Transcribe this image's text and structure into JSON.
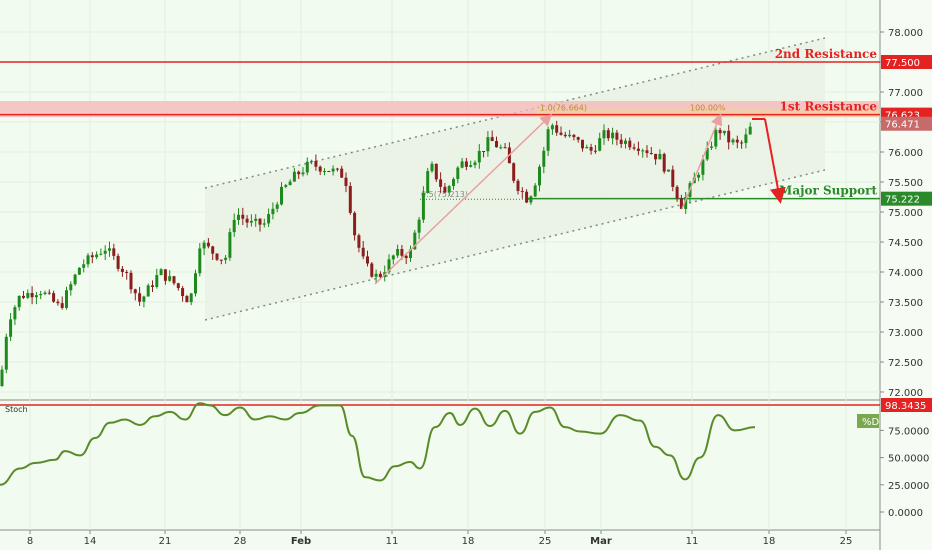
{
  "chart_data": [
    {
      "type": "candlestick",
      "title": "",
      "xlabel": "",
      "ylabel": "",
      "ylim": [
        71.8,
        78.5
      ],
      "x_ticks": [
        "8",
        "14",
        "21",
        "28",
        "Feb",
        "11",
        "18",
        "25",
        "Mar",
        "11",
        "18",
        "25"
      ],
      "y_ticks": [
        "72.000",
        "72.500",
        "73.000",
        "73.500",
        "74.000",
        "74.500",
        "75.000",
        "75.500",
        "76.000",
        "76.500",
        "77.000",
        "77.500",
        "78.000"
      ],
      "price_path": [
        [
          0,
          72.1
        ],
        [
          8,
          73.2
        ],
        [
          20,
          73.6
        ],
        [
          40,
          73.7
        ],
        [
          60,
          73.4
        ],
        [
          80,
          74.1
        ],
        [
          105,
          74.4
        ],
        [
          125,
          74.0
        ],
        [
          140,
          73.5
        ],
        [
          160,
          74.0
        ],
        [
          175,
          73.8
        ],
        [
          190,
          73.5
        ],
        [
          200,
          74.5
        ],
        [
          215,
          74.3
        ],
        [
          225,
          74.2
        ],
        [
          235,
          75.0
        ],
        [
          250,
          74.8
        ],
        [
          265,
          74.8
        ],
        [
          280,
          75.3
        ],
        [
          295,
          75.6
        ],
        [
          310,
          75.8
        ],
        [
          330,
          75.7
        ],
        [
          345,
          75.6
        ],
        [
          355,
          74.6
        ],
        [
          365,
          74.1
        ],
        [
          378,
          73.9
        ],
        [
          395,
          74.3
        ],
        [
          410,
          74.3
        ],
        [
          420,
          75.0
        ],
        [
          430,
          75.8
        ],
        [
          445,
          75.3
        ],
        [
          460,
          75.8
        ],
        [
          475,
          75.9
        ],
        [
          490,
          76.2
        ],
        [
          505,
          76.0
        ],
        [
          515,
          75.5
        ],
        [
          528,
          75.2
        ],
        [
          535,
          75.5
        ],
        [
          545,
          76.1
        ],
        [
          550,
          76.5
        ],
        [
          560,
          76.3
        ],
        [
          575,
          76.2
        ],
        [
          590,
          76.0
        ],
        [
          605,
          76.3
        ],
        [
          620,
          76.2
        ],
        [
          640,
          76.1
        ],
        [
          660,
          75.9
        ],
        [
          672,
          75.5
        ],
        [
          682,
          75.1
        ],
        [
          690,
          75.4
        ],
        [
          705,
          75.9
        ],
        [
          718,
          76.4
        ],
        [
          728,
          76.2
        ],
        [
          740,
          76.1
        ],
        [
          748,
          76.3
        ],
        [
          753,
          76.5
        ]
      ],
      "levels": [
        {
          "name": "2nd Resistance",
          "value": 77.5,
          "badge": "77.500",
          "color": "#e52222"
        },
        {
          "name": "1st Resistance",
          "value": 76.623,
          "badge": "76.623",
          "color": "#e52222"
        },
        {
          "name": "Major Support",
          "value": 75.222,
          "badge": "75.222",
          "color": "#2a8a2a"
        }
      ],
      "last_price": {
        "value": 76.471,
        "badge": "76.471"
      },
      "channel": {
        "upper": [
          [
            205,
            75.4
          ],
          [
            825,
            77.9
          ]
        ],
        "lower": [
          [
            205,
            73.2
          ],
          [
            825,
            75.7
          ]
        ]
      },
      "fib_labels": {
        "left": "0.5(75.213)",
        "top1": "1.0(76.664)",
        "top2": "100.00%"
      },
      "arrows": {
        "up": [
          [
            375,
            73.8
          ],
          [
            550,
            76.6
          ]
        ],
        "down": [
          [
            765,
            76.55
          ],
          [
            780,
            75.2
          ]
        ]
      }
    },
    {
      "type": "line",
      "title": "Stoch",
      "ylim": [
        -10,
        110
      ],
      "y_ticks": [
        "0.0000",
        "25.0000",
        "50.0000",
        "75.0000"
      ],
      "overbought": {
        "value": 98.3435,
        "badge": "98.3435"
      },
      "legend": "%D",
      "x": [
        0,
        20,
        35,
        55,
        65,
        80,
        95,
        110,
        125,
        140,
        155,
        170,
        185,
        200,
        210,
        225,
        240,
        255,
        270,
        285,
        300,
        320,
        340,
        352,
        365,
        380,
        395,
        410,
        420,
        435,
        450,
        460,
        475,
        490,
        505,
        520,
        535,
        550,
        565,
        580,
        600,
        620,
        640,
        655,
        670,
        685,
        700,
        718,
        735,
        755
      ],
      "values": [
        25,
        40,
        45,
        48,
        56,
        52,
        68,
        82,
        85,
        80,
        88,
        92,
        85,
        100,
        98,
        89,
        96,
        85,
        88,
        85,
        91,
        98,
        98,
        70,
        32,
        29,
        42,
        46,
        40,
        78,
        91,
        80,
        95,
        79,
        93,
        72,
        92,
        96,
        78,
        74,
        72,
        89,
        84,
        60,
        52,
        30,
        50,
        89,
        75,
        78
      ]
    }
  ]
}
